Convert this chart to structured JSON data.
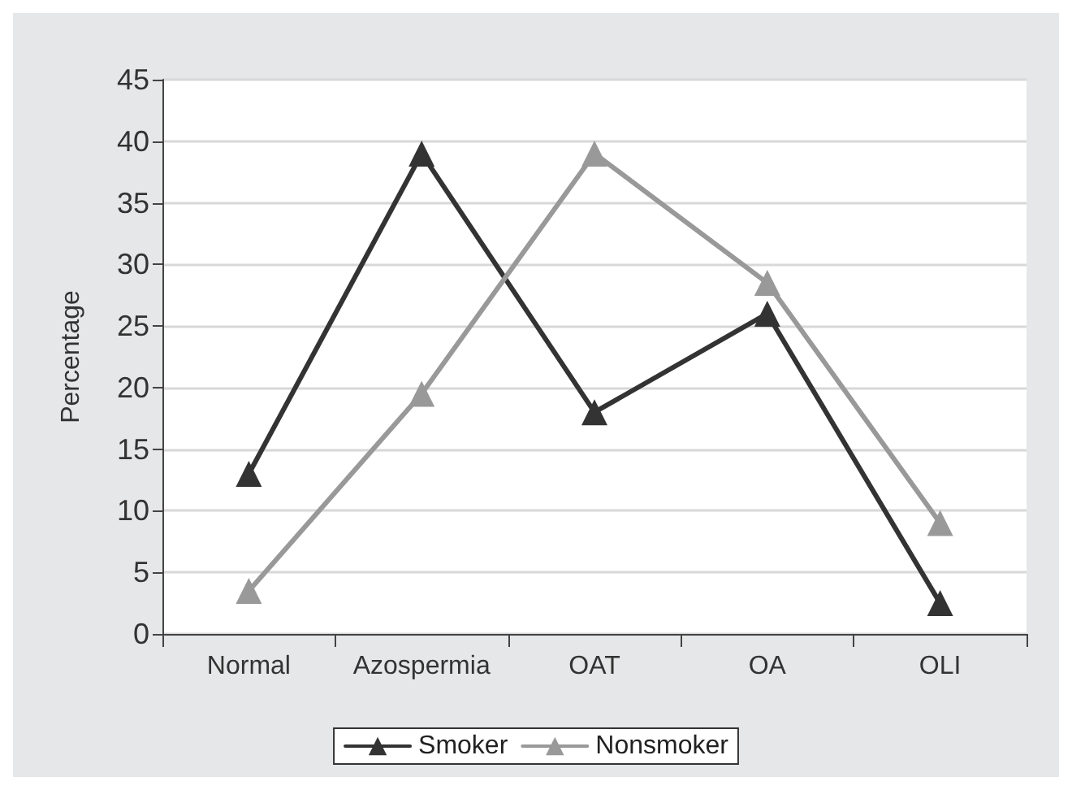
{
  "chart_data": {
    "type": "line",
    "ylabel": "Percentage",
    "categories": [
      "Normal",
      "Azospermia",
      "OAT",
      "OA",
      "OLI"
    ],
    "series": [
      {
        "name": "Smoker",
        "color": "#333333",
        "values": [
          13,
          39,
          18,
          26,
          2.5
        ]
      },
      {
        "name": "Nonsmoker",
        "color": "#999999",
        "values": [
          3.5,
          19.5,
          39,
          28.5,
          9
        ]
      }
    ],
    "ylim": [
      0,
      45
    ],
    "yticks": [
      0,
      5,
      10,
      15,
      20,
      25,
      30,
      35,
      40,
      45
    ],
    "grid": "y",
    "legend": "bottom",
    "marker": "triangle",
    "line_style": "solid"
  }
}
